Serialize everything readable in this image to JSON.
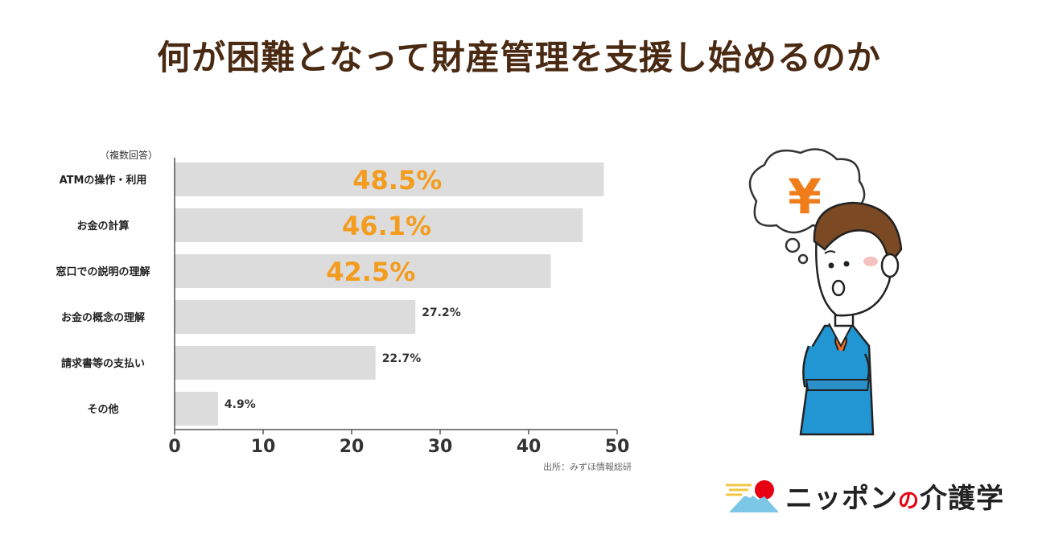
{
  "page": {
    "title": "何が困難となって財産管理を支援し始めるのか",
    "source": "出所：みずほ情報総研"
  },
  "chart_data": {
    "type": "bar",
    "orientation": "horizontal",
    "note": "（複数回答）",
    "categories": [
      "ATMの操作・利用",
      "お金の計算",
      "窓口での説明の理解",
      "お金の概念の理解",
      "請求書等の支払い",
      "その他"
    ],
    "values": [
      48.5,
      46.1,
      42.5,
      27.2,
      22.7,
      4.9
    ],
    "value_labels": [
      "48.5%",
      "46.1%",
      "42.5%",
      "27.2%",
      "22.7%",
      "4.9%"
    ],
    "xlim": [
      0,
      50
    ],
    "xticks": [
      0,
      10,
      20,
      30,
      40,
      50
    ],
    "grid": false,
    "colors": {
      "bar": "#dcdcdc",
      "highlight_label": "#f39c1e",
      "label": "#333333"
    }
  },
  "illustration": {
    "thought_symbol": "¥",
    "icon": "businessman-thinking-icon"
  },
  "logo": {
    "text_part1": "ニッポン",
    "text_no": "の",
    "text_part2": "介護学"
  }
}
